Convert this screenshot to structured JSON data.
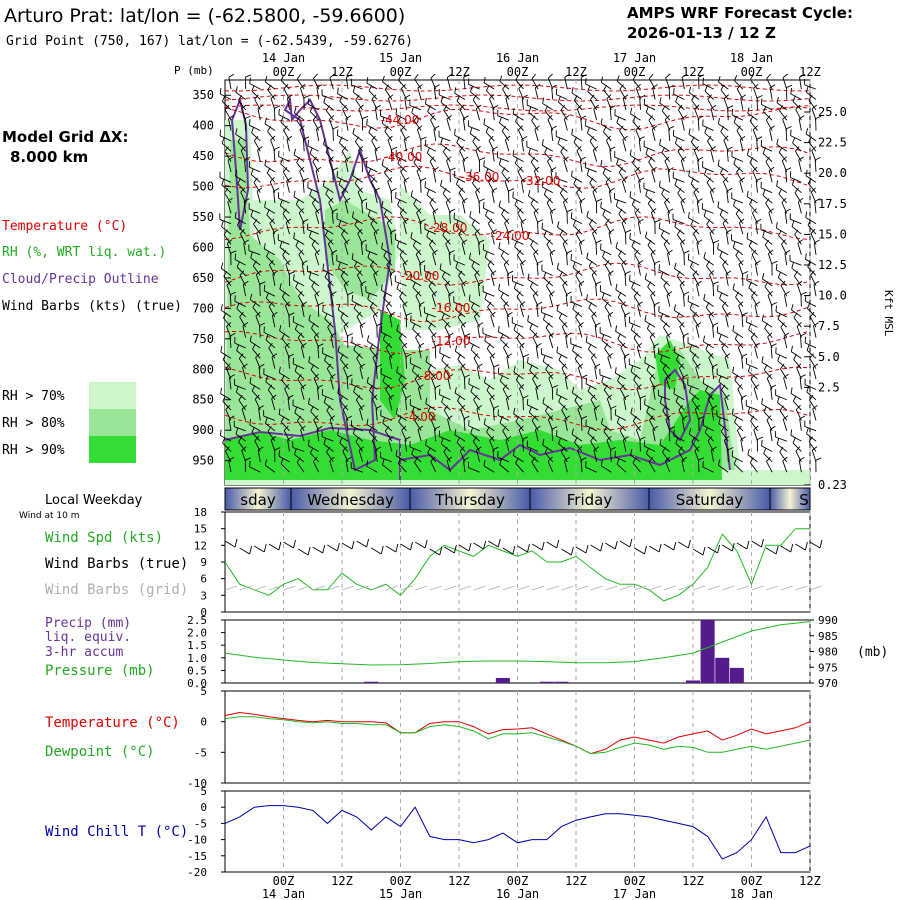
{
  "header": {
    "title": "Arturo Prat:  lat/lon = (-62.5800, -59.6600)",
    "grid_point": "Grid Point (750, 167) lat/lon = (-62.5439, -59.6276)",
    "cycle_line1": "AMPS WRF Forecast Cycle:",
    "cycle_line2": "2026-01-13 / 12  Z"
  },
  "time_axis": {
    "top_dates": [
      "14 Jan",
      "15 Jan",
      "16 Jan",
      "17 Jan",
      "18 Jan"
    ],
    "tick_labels": [
      "00Z",
      "12Z",
      "00Z",
      "12Z",
      "00Z",
      "12Z",
      "00Z",
      "12Z",
      "00Z",
      "12Z"
    ],
    "bottom_dates": [
      "14 Jan",
      "15 Jan",
      "16 Jan",
      "17 Jan",
      "18 Jan"
    ]
  },
  "colors": {
    "temperature": "#e00000",
    "rh": "#22cc22",
    "cloud": "#663399",
    "wind": "#000000",
    "wind_grid": "#b0b0b0",
    "windchill": "#0000aa",
    "rh70": "#ccf7cc",
    "rh80": "#99e699",
    "rh90": "#33dd33"
  },
  "legend": {
    "model_grid": "Model Grid ΔX:",
    "grid_value": "8.000 km",
    "temperature": "Temperature (°C)",
    "rh": "RH (%, WRT liq. wat.)",
    "cloud": "Cloud/Precip Outline",
    "wind": "Wind Barbs (kts) (true)",
    "rh70": "RH > 70%",
    "rh80": "RH > 80%",
    "rh90": "RH > 90%"
  },
  "weekday": {
    "label": "Local Weekday",
    "sublabel": "Wind at 10 m",
    "days": [
      "sday",
      "Wednesday",
      "Thursday",
      "Friday",
      "Saturday",
      "S"
    ]
  },
  "panel_labels": {
    "wind_spd": "Wind Spd (kts)",
    "wind_barbs": "Wind Barbs (true)",
    "wind_barbs_grid": "Wind Barbs (grid)",
    "precip": "Precip (mm)",
    "precip2": "liq. equiv.",
    "precip3": "3-hr accum",
    "pressure": "Pressure (mb)",
    "pressure_unit": "(mb)",
    "temperature": "Temperature (°C)",
    "dewpoint": "Dewpoint (°C)",
    "windchill": "Wind Chill T (°C)"
  },
  "chart_data": [
    {
      "type": "heatmap",
      "ylabel": "P (mb)",
      "ylabel_right": "Kft MSL",
      "y_ticks": [
        "350",
        "400",
        "450",
        "500",
        "550",
        "600",
        "650",
        "700",
        "750",
        "800",
        "850",
        "900",
        "950"
      ],
      "y_ticks_right": [
        "25.0",
        "22.5",
        "20.0",
        "17.5",
        "15.0",
        "12.5",
        "10.0",
        "7.5",
        "5.0",
        "2.5",
        "0.23"
      ],
      "temp_labels": [
        "-44.00",
        "-40.00",
        "-36.00",
        "-32.00",
        "-28.00",
        "-24.00",
        "-20.00",
        "-16.00",
        "-12.00",
        "-8.00",
        "-4.00"
      ]
    },
    {
      "type": "line",
      "title": "Wind Spd (kts)",
      "y_ticks": [
        "18",
        "15",
        "12",
        "9",
        "6",
        "3",
        "0"
      ],
      "ylim": [
        0,
        18
      ],
      "hours": [
        0,
        3,
        6,
        9,
        12,
        15,
        18,
        21,
        24,
        27,
        30,
        33,
        36,
        39,
        42,
        45,
        48,
        51,
        54,
        57,
        60,
        63,
        66,
        69,
        72,
        75,
        78,
        81,
        84,
        87,
        90,
        93,
        96,
        99,
        102,
        105,
        108,
        111,
        114,
        117,
        120
      ],
      "values": [
        9,
        5,
        4,
        3,
        5,
        6,
        4,
        4,
        7,
        5,
        4,
        5,
        3,
        6,
        10,
        12,
        11,
        10,
        12,
        11,
        10,
        11,
        9,
        9,
        10,
        8,
        6,
        5,
        5,
        4,
        2,
        3,
        5,
        8,
        14,
        11,
        5,
        12,
        12,
        15,
        15
      ]
    },
    {
      "type": "bar",
      "title": "Precip (mm)",
      "y_ticks": [
        "2.5",
        "2.0",
        "1.5",
        "1.0",
        "0.5",
        "0.0"
      ],
      "ylim": [
        0,
        2.5
      ],
      "y_ticks_right": [
        "990",
        "985",
        "980",
        "975",
        "970"
      ],
      "ylim_right": [
        970,
        990
      ],
      "hours": [
        30,
        57,
        66,
        69,
        96,
        99,
        102,
        105
      ],
      "values": [
        0.05,
        0.2,
        0.05,
        0.05,
        0.1,
        2.5,
        1.0,
        0.6
      ],
      "pressure_hours": [
        0,
        6,
        12,
        18,
        24,
        30,
        36,
        42,
        48,
        54,
        60,
        66,
        72,
        78,
        84,
        90,
        96,
        102,
        108,
        114,
        120
      ],
      "pressure": [
        979.5,
        978.2,
        977.3,
        976.5,
        976.1,
        975.7,
        975.8,
        976.2,
        976.8,
        977.0,
        977.0,
        976.8,
        976.4,
        976.4,
        976.8,
        978.0,
        979.5,
        983.0,
        986.5,
        988.5,
        989.5
      ]
    },
    {
      "type": "line",
      "title": "Temperature (°C)",
      "y_ticks": [
        "5",
        "0",
        "-5",
        "-10"
      ],
      "ylim": [
        -10,
        5
      ],
      "hours": [
        0,
        3,
        6,
        9,
        12,
        15,
        18,
        21,
        24,
        27,
        30,
        33,
        36,
        39,
        42,
        45,
        48,
        51,
        54,
        57,
        60,
        63,
        66,
        69,
        72,
        75,
        78,
        81,
        84,
        87,
        90,
        93,
        96,
        99,
        102,
        105,
        108,
        111,
        114,
        117,
        120
      ],
      "values": [
        1.0,
        1.5,
        1.2,
        0.8,
        0.5,
        0.2,
        0.0,
        0.2,
        0.0,
        0.0,
        0.0,
        -0.2,
        -1.8,
        -1.8,
        -0.3,
        0.0,
        0.0,
        -0.8,
        -2.0,
        -1.3,
        -1.2,
        -1.0,
        -2.0,
        -3.0,
        -4.0,
        -5.2,
        -4.5,
        -3.0,
        -2.5,
        -3.0,
        -3.5,
        -2.5,
        -2.0,
        -1.5,
        -3.0,
        -2.2,
        -1.2,
        -2.0,
        -1.5,
        -1.0,
        0.0
      ],
      "series": [
        {
          "name": "Temperature (°C)"
        },
        {
          "name": "Dewpoint (°C)",
          "values": [
            0.5,
            0.8,
            0.8,
            0.5,
            0.3,
            0.0,
            -0.2,
            0.0,
            -0.3,
            -0.3,
            -0.5,
            -0.5,
            -1.8,
            -1.8,
            -0.8,
            -0.5,
            -0.8,
            -1.5,
            -2.8,
            -2.0,
            -2.0,
            -1.8,
            -2.5,
            -3.2,
            -4.0,
            -5.2,
            -5.0,
            -4.2,
            -3.5,
            -3.8,
            -4.5,
            -4.0,
            -4.2,
            -5.0,
            -5.0,
            -4.5,
            -4.0,
            -4.5,
            -4.0,
            -3.5,
            -3.0
          ]
        }
      ]
    },
    {
      "type": "line",
      "title": "Wind Chill T (°C)",
      "y_ticks": [
        "5",
        "0",
        "-5",
        "-10",
        "-15",
        "-20"
      ],
      "ylim": [
        -20,
        5
      ],
      "hours": [
        0,
        3,
        6,
        9,
        12,
        15,
        18,
        21,
        24,
        27,
        30,
        33,
        36,
        39,
        42,
        45,
        48,
        51,
        54,
        57,
        60,
        63,
        66,
        69,
        72,
        75,
        78,
        81,
        84,
        87,
        90,
        93,
        96,
        99,
        102,
        105,
        108,
        111,
        114,
        117,
        120
      ],
      "values": [
        -5,
        -3,
        0,
        0.5,
        0.5,
        0,
        -1,
        -5,
        -1,
        -3,
        -7,
        -3,
        -6,
        0,
        -9,
        -10,
        -10,
        -11,
        -10,
        -8,
        -11,
        -10,
        -10,
        -6,
        -4,
        -3,
        -2,
        -2,
        -2.5,
        -3,
        -4,
        -5,
        -6,
        -9,
        -16,
        -14,
        -10,
        -3,
        -14,
        -14,
        -12
      ]
    }
  ]
}
